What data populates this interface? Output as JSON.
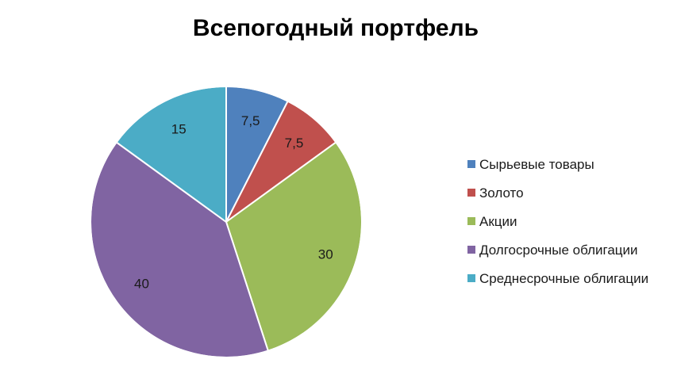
{
  "chart_data": {
    "type": "pie",
    "title": "Всепогодный портфель",
    "categories": [
      "Сырьевые товары",
      "Золото",
      "Акции",
      "Долгосрочные облигации",
      "Среднесрочные облигации"
    ],
    "values": [
      7.5,
      7.5,
      30,
      40,
      15
    ],
    "data_labels": [
      "7,5",
      "7,5",
      "30",
      "40",
      "15"
    ],
    "colors": [
      "#4f81bd",
      "#c0504d",
      "#9bbb59",
      "#8064a2",
      "#4bacc6"
    ],
    "start": "12 o'clock",
    "direction": "clockwise",
    "legend_position": "right"
  }
}
